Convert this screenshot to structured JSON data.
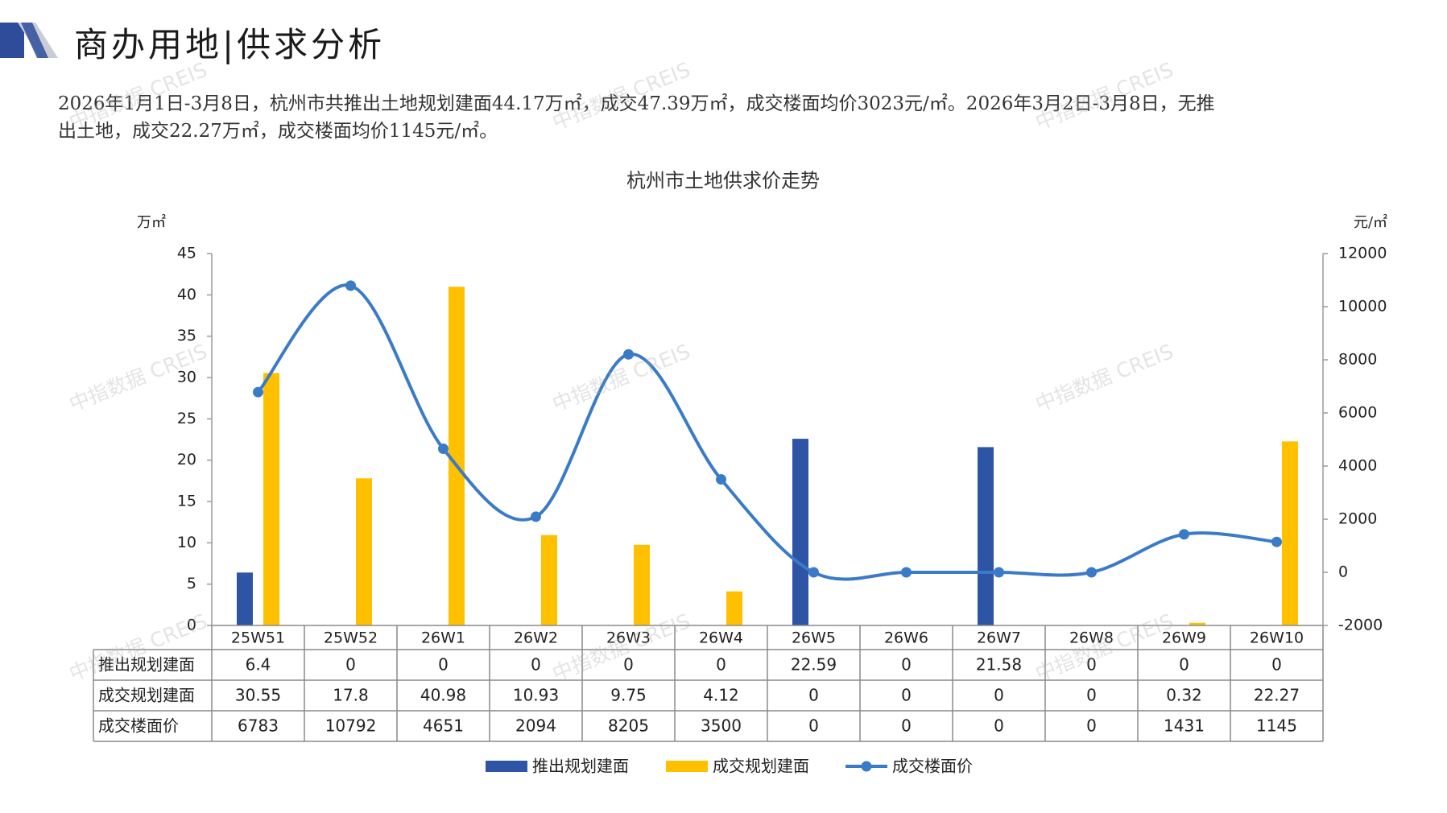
{
  "header": {
    "title": "商办用地|供求分析"
  },
  "summary": {
    "line1": "2026年1月1日-3月8日，杭州市共推出土地规划建面44.17万㎡，成交47.39万㎡，成交楼面均价3023元/㎡。2026年3月2日-3月8日，无推",
    "line2": "出土地，成交22.27万㎡，成交楼面均价1145元/㎡。"
  },
  "colors": {
    "supply": "#2E55A5",
    "deal": "#FFC000",
    "price": "#3A7BC8",
    "deco_dark": "#2E4C9A",
    "deco_light": "#C9CDD6"
  },
  "watermark": "中指数据 CREIS",
  "chart_data": {
    "type": "bar",
    "title": "杭州市土地供求价走势",
    "ylabel_left": "万㎡",
    "ylabel_right": "元/㎡",
    "ylim_left": [
      0,
      45
    ],
    "yticks_left": [
      0,
      5,
      10,
      15,
      20,
      25,
      30,
      35,
      40,
      45
    ],
    "ylim_right": [
      -2000,
      12000
    ],
    "yticks_right": [
      -2000,
      0,
      2000,
      4000,
      6000,
      8000,
      10000,
      12000
    ],
    "categories": [
      "25W51",
      "25W52",
      "26W1",
      "26W2",
      "26W3",
      "26W4",
      "26W5",
      "26W6",
      "26W7",
      "26W8",
      "26W9",
      "26W10"
    ],
    "series": [
      {
        "name": "推出规划建面",
        "kind": "bar",
        "axis": "left",
        "color": "#2E55A5",
        "values": [
          6.4,
          0,
          0,
          0,
          0,
          0,
          22.59,
          0,
          21.58,
          0,
          0,
          0
        ],
        "labels": [
          "6.4",
          "0",
          "0",
          "0",
          "0",
          "0",
          "22.59",
          "0",
          "21.58",
          "0",
          "0",
          "0"
        ]
      },
      {
        "name": "成交规划建面",
        "kind": "bar",
        "axis": "left",
        "color": "#FFC000",
        "values": [
          30.55,
          17.8,
          40.98,
          10.93,
          9.75,
          4.12,
          0,
          0,
          0,
          0,
          0.32,
          22.27
        ],
        "labels": [
          "30.55",
          "17.8",
          "40.98",
          "10.93",
          "9.75",
          "4.12",
          "0",
          "0",
          "0",
          "0",
          "0.32",
          "22.27"
        ]
      },
      {
        "name": "成交楼面价",
        "kind": "line",
        "axis": "right",
        "color": "#3A7BC8",
        "values": [
          6783,
          10792,
          4651,
          2094,
          8205,
          3500,
          0,
          0,
          0,
          0,
          1431,
          1145
        ],
        "labels": [
          "6783",
          "10792",
          "4651",
          "2094",
          "8205",
          "3500",
          "0",
          "0",
          "0",
          "0",
          "1431",
          "1145"
        ]
      }
    ],
    "legend_position": "bottom"
  }
}
